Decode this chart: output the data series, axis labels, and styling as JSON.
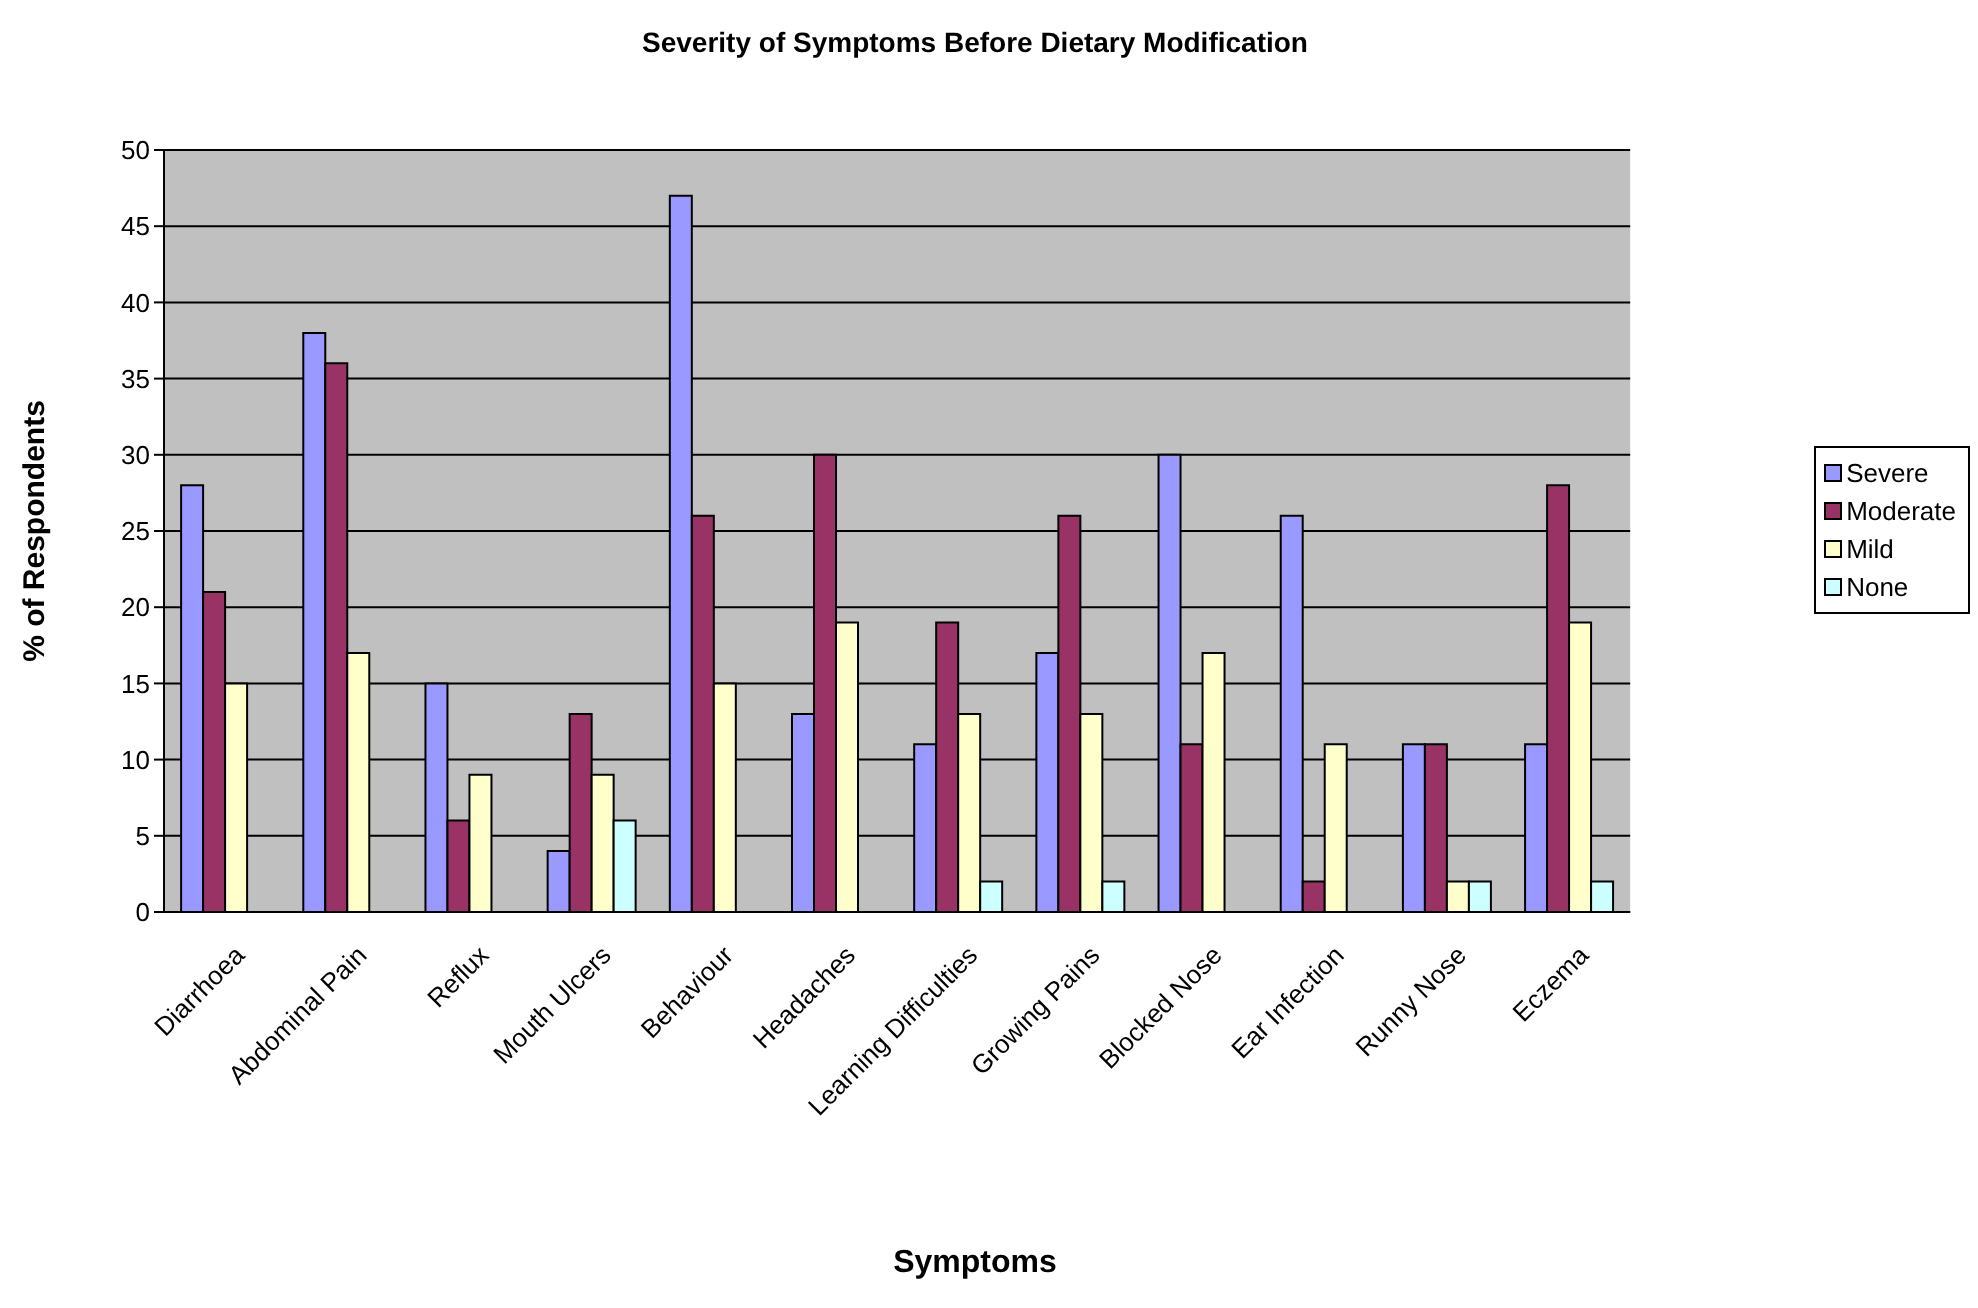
{
  "chart_data": {
    "type": "bar",
    "title": "Severity of Symptoms Before Dietary Modification",
    "xlabel": "Symptoms",
    "ylabel": "% of Respondents",
    "categories": [
      "Diarrhoea",
      "Abdominal Pain",
      "Reflux",
      "Mouth Ulcers",
      "Behaviour",
      "Headaches",
      "Learning Difficulties",
      "Growing Pains",
      "Blocked Nose",
      "Ear Infection",
      "Runny Nose",
      "Eczema"
    ],
    "series": [
      {
        "name": "Severe",
        "color": "#9999ff",
        "values": [
          28,
          38,
          15,
          4,
          47,
          13,
          11,
          17,
          30,
          26,
          11,
          11
        ]
      },
      {
        "name": "Moderate",
        "color": "#993366",
        "values": [
          21,
          36,
          6,
          13,
          26,
          30,
          19,
          26,
          11,
          2,
          11,
          28
        ]
      },
      {
        "name": "Mild",
        "color": "#ffffcc",
        "values": [
          15,
          17,
          9,
          9,
          15,
          19,
          13,
          13,
          17,
          11,
          2,
          19
        ]
      },
      {
        "name": "None",
        "color": "#ccffff",
        "values": [
          null,
          null,
          null,
          6,
          null,
          null,
          2,
          2,
          null,
          null,
          2,
          2
        ]
      }
    ],
    "ylim": [
      0,
      50
    ],
    "yticks": [
      0,
      5,
      10,
      15,
      20,
      25,
      30,
      35,
      40,
      45,
      50
    ],
    "grid": "y",
    "legend": "right"
  }
}
